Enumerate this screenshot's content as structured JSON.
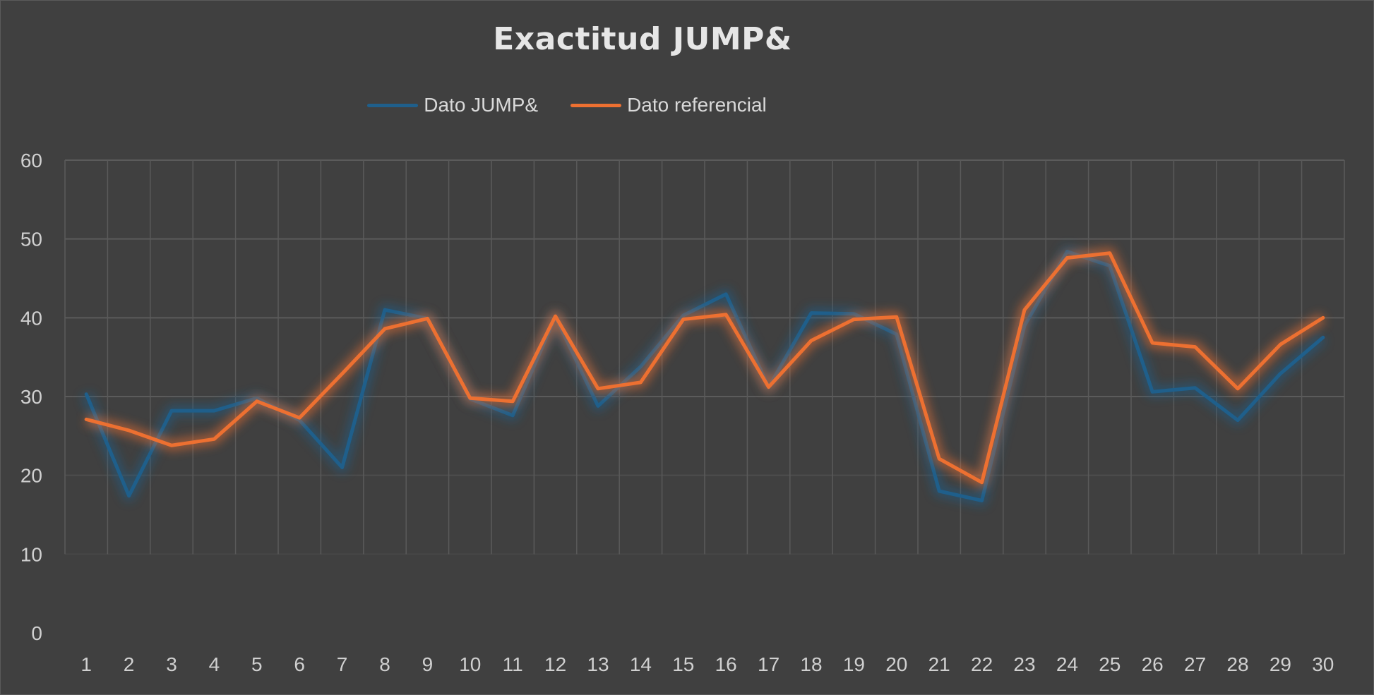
{
  "chart_data": {
    "type": "line",
    "title": "Exactitud JUMP&",
    "xlabel": "",
    "ylabel": "",
    "ylim": [
      0,
      60
    ],
    "yticks": [
      0,
      10,
      20,
      30,
      40,
      50,
      60
    ],
    "grid": true,
    "legend_position": "top-center",
    "categories": [
      "1",
      "2",
      "3",
      "4",
      "5",
      "6",
      "7",
      "8",
      "9",
      "10",
      "11",
      "12",
      "13",
      "14",
      "15",
      "16",
      "17",
      "18",
      "19",
      "20",
      "21",
      "22",
      "23",
      "24",
      "25",
      "26",
      "27",
      "28",
      "29",
      "30"
    ],
    "series": [
      {
        "name": "Dato JUMP&",
        "color": "#1f5f8b",
        "values": [
          30.3,
          17.4,
          28.2,
          28.2,
          29.8,
          27.0,
          21.0,
          41.0,
          39.9,
          29.7,
          27.6,
          40.1,
          28.8,
          33.8,
          40.3,
          43.0,
          31.2,
          40.6,
          40.5,
          37.9,
          18.0,
          16.8,
          39.0,
          48.4,
          46.6,
          30.6,
          31.1,
          27.0,
          32.9,
          37.5
        ]
      },
      {
        "name": "Dato referencial",
        "color": "#ed7031",
        "values": [
          27.1,
          25.7,
          23.8,
          24.6,
          29.4,
          27.3,
          32.9,
          38.6,
          39.9,
          29.8,
          29.4,
          40.2,
          31.0,
          31.8,
          39.8,
          40.4,
          31.2,
          37.1,
          39.8,
          40.1,
          22.1,
          19.1,
          41.0,
          47.6,
          48.2,
          36.8,
          36.3,
          31.0,
          36.6,
          40.0
        ]
      }
    ]
  }
}
